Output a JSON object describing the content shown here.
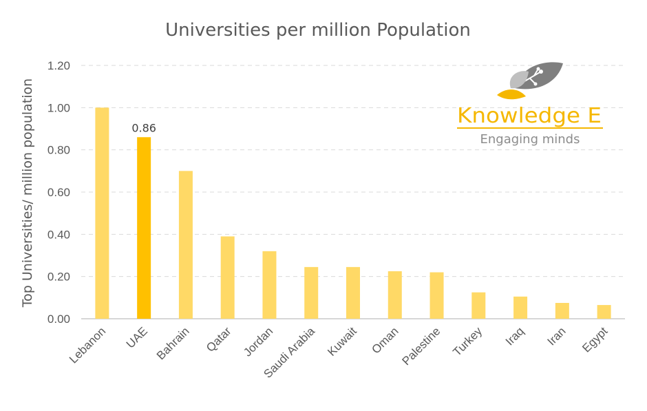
{
  "chart_data": {
    "type": "bar",
    "title": "Universities per million Population",
    "xlabel": "",
    "ylabel": "Top Universities/ million population",
    "categories": [
      "Lebanon",
      "UAE",
      "Bahrain",
      "Qatar",
      "Jordan",
      "Saudi Arabia",
      "Kuwait",
      "Oman",
      "Palestine",
      "Turkey",
      "Iraq",
      "Iran",
      "Egypt"
    ],
    "values": [
      1.0,
      0.86,
      0.7,
      0.39,
      0.32,
      0.245,
      0.245,
      0.225,
      0.22,
      0.125,
      0.105,
      0.075,
      0.065
    ],
    "highlight_index": 1,
    "data_labels": [
      {
        "category": "UAE",
        "text": "0.86"
      }
    ],
    "ylim": [
      0,
      1.2
    ],
    "yticks": [
      "0.00",
      "0.20",
      "0.40",
      "0.60",
      "0.80",
      "1.00",
      "1.20"
    ],
    "grid": true,
    "colors": {
      "bar": "#ffd966",
      "highlight": "#ffc000",
      "grid": "#d9d9d9",
      "text": "#595959"
    }
  },
  "logo": {
    "name": "Knowledge E",
    "tagline": "Engaging minds",
    "colors": {
      "brand": "#f5b700",
      "leaf_dark": "#7f7f7f",
      "leaf_light": "#bfbfbf"
    }
  }
}
